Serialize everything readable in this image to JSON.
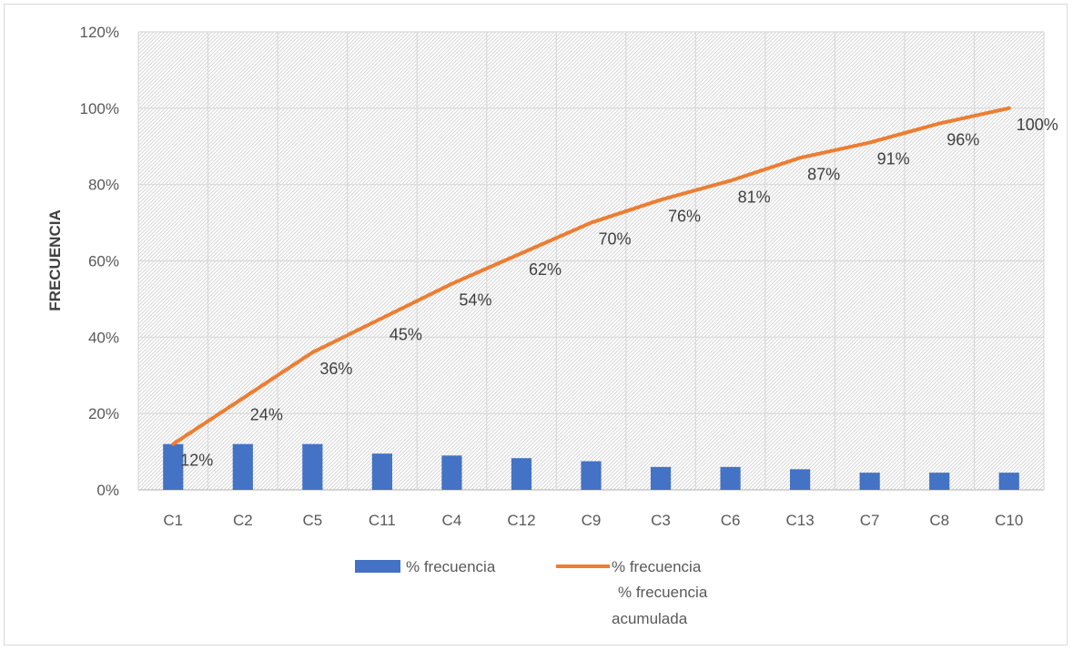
{
  "chart_data": {
    "type": "bar+line",
    "categories": [
      "C1",
      "C2",
      "C5",
      "C11",
      "C4",
      "C12",
      "C9",
      "C3",
      "C6",
      "C13",
      "C7",
      "C8",
      "C10"
    ],
    "series": [
      {
        "name": "% frecuencia",
        "kind": "bar",
        "color": "#4472c4",
        "values": [
          0.12,
          0.12,
          0.12,
          0.095,
          0.09,
          0.083,
          0.075,
          0.06,
          0.06,
          0.054,
          0.045,
          0.045,
          0.045
        ]
      },
      {
        "name": "% frecuencia",
        "kind": "line",
        "color": "#ed7d31",
        "values": [
          0.12,
          0.24,
          0.36,
          0.45,
          0.54,
          0.62,
          0.7,
          0.76,
          0.81,
          0.87,
          0.91,
          0.96,
          1.0
        ],
        "data_labels": [
          "12%",
          "24%",
          "36%",
          "45%",
          "54%",
          "62%",
          "70%",
          "76%",
          "81%",
          "87%",
          "91%",
          "96%",
          "100%"
        ]
      }
    ],
    "ylabel": "FRECUENCIA",
    "ylim": [
      0,
      1.2
    ],
    "yticks": [
      "0%",
      "20%",
      "40%",
      "60%",
      "80%",
      "100%",
      "120%"
    ],
    "grid": true,
    "legend": {
      "position": "bottom",
      "bar_label": "% frecuencia",
      "line_label": "% frecuencia",
      "line_label_extra_1": "% frecuencia",
      "line_label_extra_2": "acumulada"
    }
  }
}
